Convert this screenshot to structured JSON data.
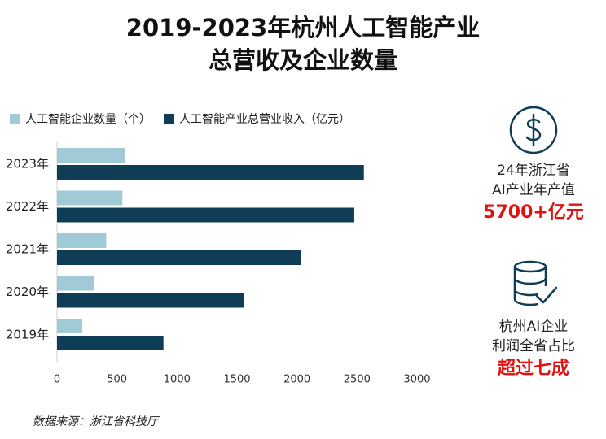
{
  "title_line1": "2019-2023年杭州人工智能产业",
  "title_line2": "总营收及企业数量",
  "chart_data": {
    "type": "bar",
    "orientation": "horizontal",
    "categories": [
      "2023年",
      "2022年",
      "2021年",
      "2020年",
      "2019年"
    ],
    "series": [
      {
        "name": "人工智能企业数量（个）",
        "color": "#9fcad6",
        "values": [
          565,
          545,
          410,
          305,
          210
        ]
      },
      {
        "name": "人工智能产业总营业收入（亿元）",
        "color": "#0e3d55",
        "values": [
          2557,
          2477,
          2030,
          1557,
          887
        ]
      }
    ],
    "xlim": [
      0,
      3000
    ],
    "xticks": [
      "0",
      "500",
      "1000",
      "1500",
      "2000",
      "2500",
      "3000"
    ],
    "grid": false,
    "legend": "top-left"
  },
  "side_top": {
    "icon": "dollar-icon",
    "line1": "24年浙江省",
    "line2": "AI产业年产值",
    "highlight": "5700+亿元"
  },
  "side_bottom": {
    "icon": "database-check-icon",
    "line1": "杭州AI企业",
    "line2": "利润全省占比",
    "highlight": "超过七成"
  },
  "highlight_color": "#e0120f",
  "icon_color": "#0e3d55",
  "source": "数据来源：浙江省科技厅"
}
